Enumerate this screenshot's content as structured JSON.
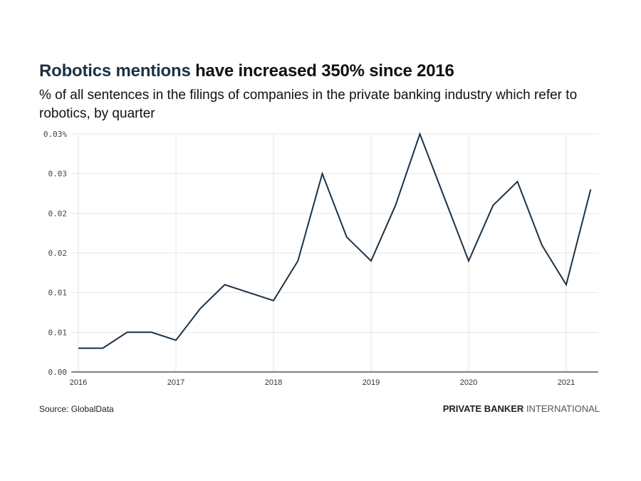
{
  "header": {
    "title_accent": "Robotics mentions",
    "title_rest": " have increased 350% since 2016",
    "subtitle": "% of all sentences in the filings of companies in the private banking industry which refer to robotics, by quarter"
  },
  "footer": {
    "source": "Source: GlobalData",
    "brand_bold": "PRIVATE BANKER",
    "brand_light": " INTERNATIONAL"
  },
  "colors": {
    "line": "#1b3247",
    "title_accent": "#1b3247",
    "grid": "#e6e6e6",
    "axis": "#333333"
  },
  "chart_data": {
    "type": "line",
    "title": "Robotics mentions have increased 350% since 2016",
    "subtitle": "% of all sentences in the filings of companies in the private banking industry which refer to robotics, by quarter",
    "xlabel": "",
    "ylabel": "",
    "x": [
      "2016 Q1",
      "2016 Q2",
      "2016 Q3",
      "2016 Q4",
      "2017 Q1",
      "2017 Q2",
      "2017 Q3",
      "2017 Q4",
      "2018 Q1",
      "2018 Q2",
      "2018 Q3",
      "2018 Q4",
      "2019 Q1",
      "2019 Q2",
      "2019 Q3",
      "2019 Q4",
      "2020 Q1",
      "2020 Q2",
      "2020 Q3",
      "2020 Q4",
      "2021 Q1",
      "2021 Q2"
    ],
    "series": [
      {
        "name": "Robotics mentions",
        "values": [
          0.003,
          0.003,
          0.005,
          0.005,
          0.004,
          0.008,
          0.011,
          0.01,
          0.009,
          0.014,
          0.025,
          0.017,
          0.014,
          0.021,
          0.03,
          0.022,
          0.014,
          0.021,
          0.024,
          0.016,
          0.011,
          0.023
        ]
      }
    ],
    "ylim": [
      0,
      0.03
    ],
    "yticks": [
      0,
      0.005,
      0.01,
      0.015,
      0.02,
      0.025,
      0.03
    ],
    "ytick_labels": [
      "0.00",
      "0.01",
      "0.01",
      "0.02",
      "0.02",
      "0.03",
      "0.03%"
    ],
    "xtick_labels": [
      "2016",
      "2017",
      "2018",
      "2019",
      "2020",
      "2021"
    ],
    "grid": true,
    "legend": "none"
  }
}
